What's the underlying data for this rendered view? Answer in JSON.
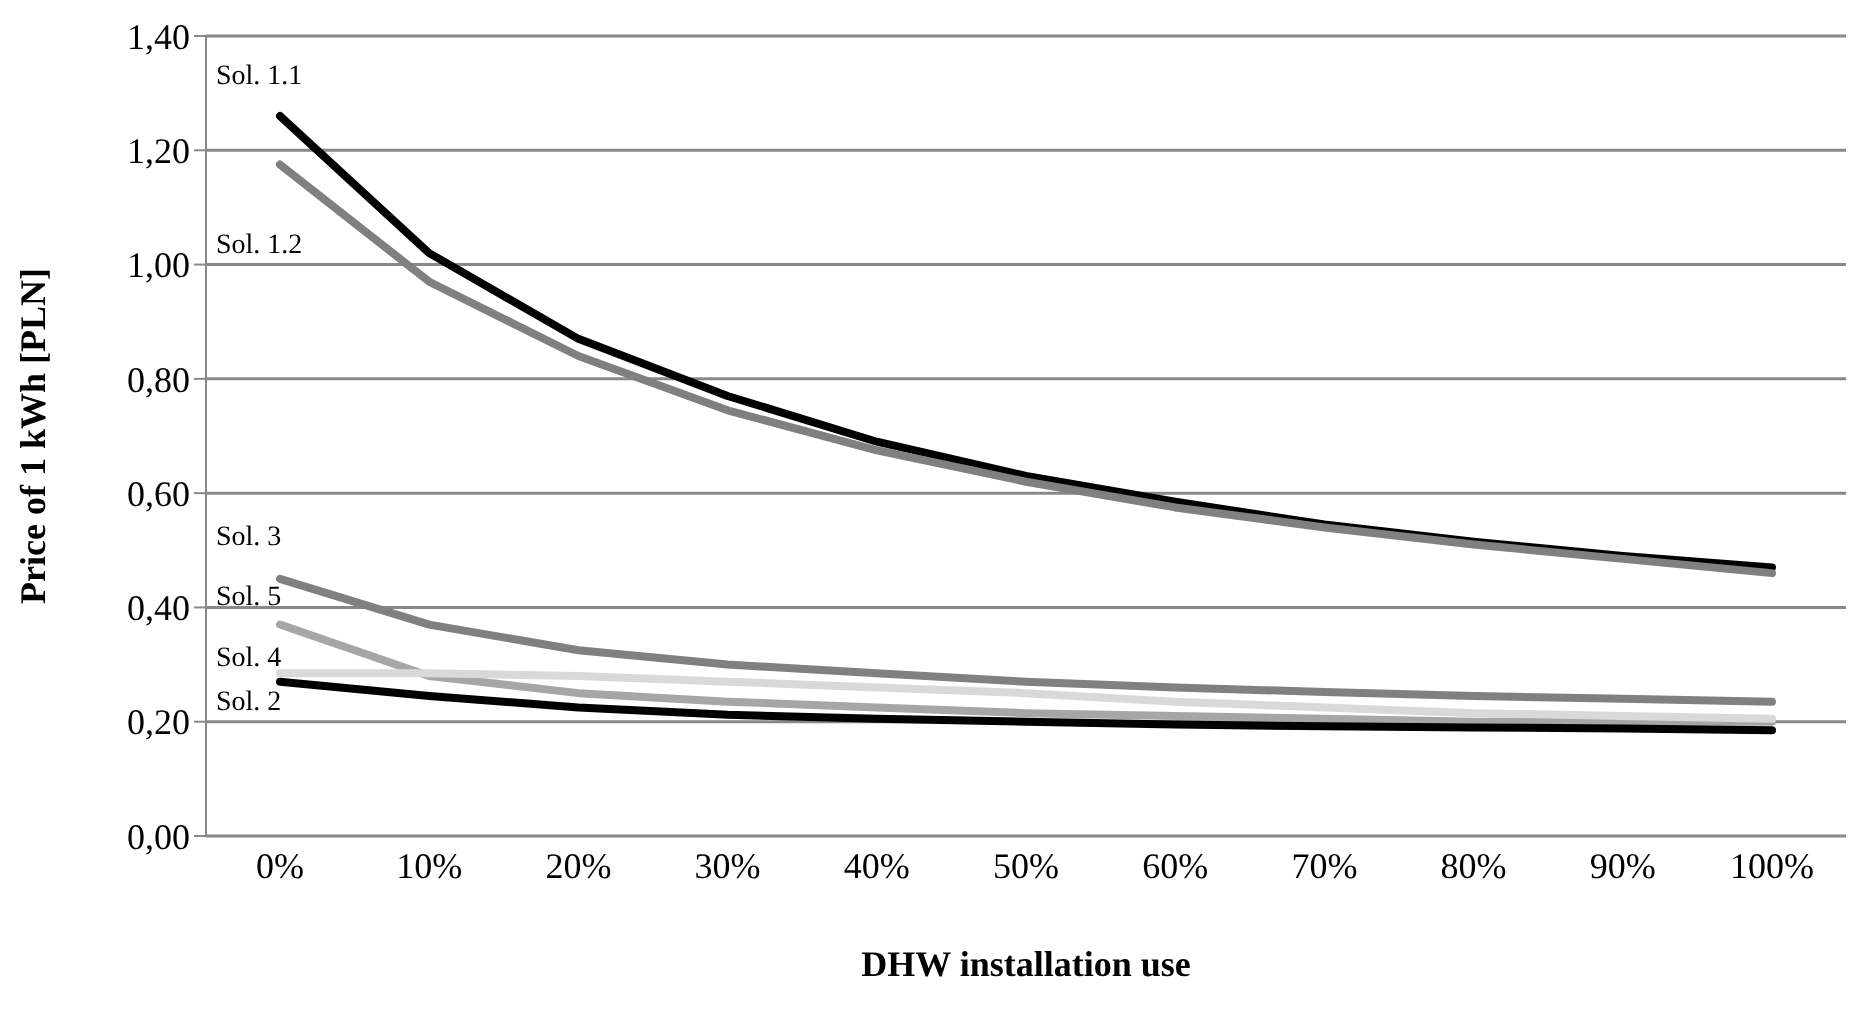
{
  "chart_data": {
    "type": "line",
    "xlabel": "DHW installation use",
    "ylabel": "Price of  1 kWh [PLN]",
    "categories": [
      "0%",
      "10%",
      "20%",
      "30%",
      "40%",
      "50%",
      "60%",
      "70%",
      "80%",
      "90%",
      "100%"
    ],
    "series": [
      {
        "name": "Sol. 1.1",
        "color": "#000000",
        "values": [
          1.26,
          1.02,
          0.87,
          0.77,
          0.69,
          0.63,
          0.585,
          0.545,
          0.515,
          0.49,
          0.47
        ]
      },
      {
        "name": "Sol. 1.2",
        "color": "#808080",
        "values": [
          1.175,
          0.97,
          0.84,
          0.745,
          0.675,
          0.62,
          0.575,
          0.54,
          0.51,
          0.485,
          0.46
        ]
      },
      {
        "name": "Sol. 3",
        "color": "#808080",
        "values": [
          0.45,
          0.37,
          0.325,
          0.3,
          0.285,
          0.27,
          0.26,
          0.252,
          0.245,
          0.24,
          0.235
        ]
      },
      {
        "name": "Sol. 5",
        "color": "#a6a6a6",
        "values": [
          0.37,
          0.28,
          0.25,
          0.235,
          0.225,
          0.215,
          0.21,
          0.205,
          0.2,
          0.2,
          0.2
        ]
      },
      {
        "name": "Sol. 4",
        "color": "#d9d9d9",
        "values": [
          0.285,
          0.285,
          0.28,
          0.27,
          0.26,
          0.25,
          0.235,
          0.225,
          0.215,
          0.21,
          0.205
        ]
      },
      {
        "name": "Sol. 2",
        "color": "#000000",
        "values": [
          0.27,
          0.245,
          0.225,
          0.212,
          0.205,
          0.2,
          0.195,
          0.192,
          0.19,
          0.188,
          0.185
        ]
      }
    ],
    "ylim": [
      0,
      1.4
    ],
    "yticks": [
      {
        "value": 0,
        "label": "0,00"
      },
      {
        "value": 0.2,
        "label": "0,20"
      },
      {
        "value": 0.4,
        "label": "0,40"
      },
      {
        "value": 0.6,
        "label": "0,60"
      },
      {
        "value": 0.8,
        "label": "0,80"
      },
      {
        "value": 1.0,
        "label": "1,00"
      },
      {
        "value": 1.2,
        "label": "1,20"
      },
      {
        "value": 1.4,
        "label": "1,40"
      }
    ],
    "grid": "y",
    "legend": false,
    "marker": "none",
    "line_style": "solid"
  }
}
